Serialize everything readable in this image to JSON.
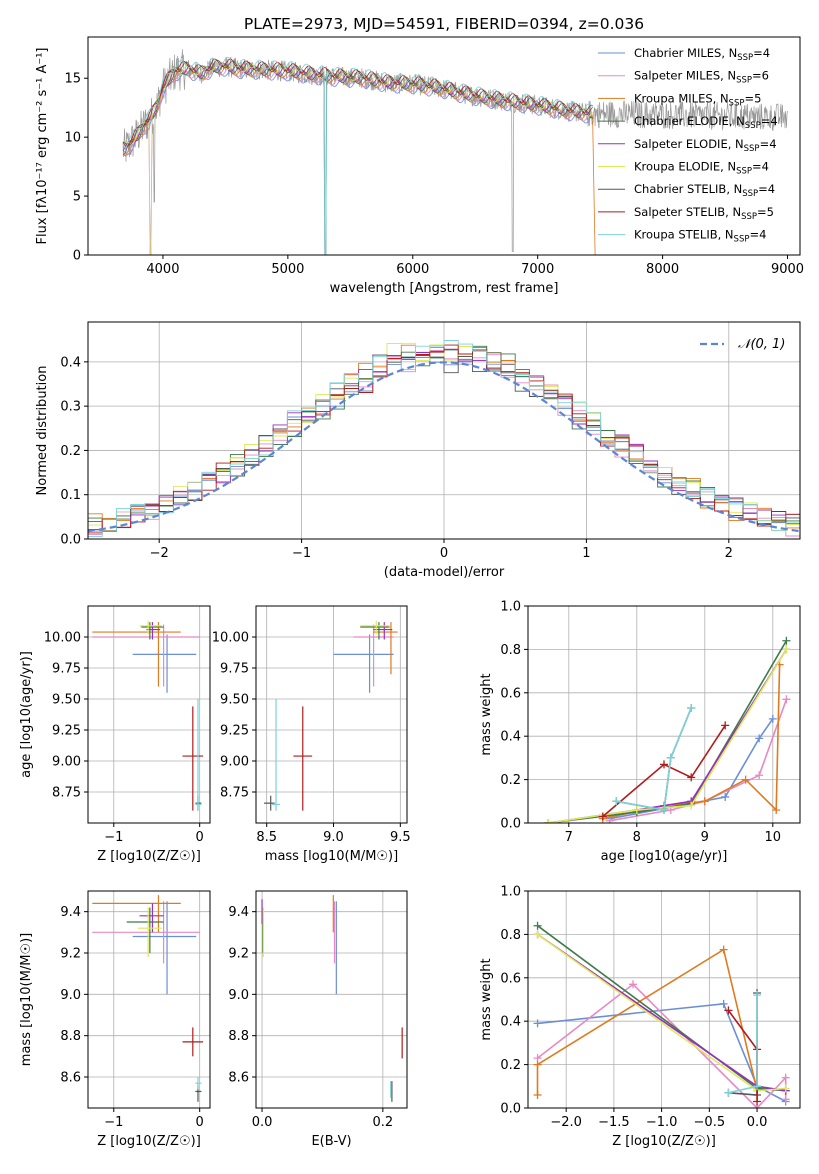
{
  "title": "PLATE=2973, MJD=54591, FIBERID=0394, z=0.036",
  "colors": {
    "chab_miles": "#6a8fd6",
    "salp_miles": "#e889c3",
    "krou_miles": "#e07a1f",
    "chab_elodie": "#3f7a4a",
    "salp_elodie": "#9a2fbf",
    "krou_elodie": "#dde85a",
    "chab_stelib": "#555555",
    "salp_stelib": "#b01b1b",
    "krou_stelib": "#7dd3d8",
    "data_spectrum": "#999999",
    "normal_curve": "#5b86d6"
  },
  "chart_data": [
    {
      "id": "spectrum",
      "type": "line",
      "xlabel": "wavelength [Angstrom, rest frame]",
      "ylabel": "Flux [fλ10⁻¹⁷ erg cm⁻² s⁻¹ A⁻¹]",
      "xlim": [
        3400,
        9100
      ],
      "ylim": [
        0,
        18.5
      ],
      "xticks": [
        4000,
        5000,
        6000,
        7000,
        8000,
        9000
      ],
      "yticks": [
        0,
        5,
        10,
        15
      ],
      "legend": {
        "placement": "top-right",
        "entries": [
          {
            "key": "chab_miles",
            "name": "Chabrier MILES, N",
            "sub": "SSP",
            "tail": "=4"
          },
          {
            "key": "salp_miles",
            "name": "Salpeter MILES, N",
            "sub": "SSP",
            "tail": "=6"
          },
          {
            "key": "krou_miles",
            "name": "Kroupa MILES, N",
            "sub": "SSP",
            "tail": "=5"
          },
          {
            "key": "chab_elodie",
            "name": "Chabrier ELODIE, N",
            "sub": "SSP",
            "tail": "=4"
          },
          {
            "key": "salp_elodie",
            "name": "Salpeter ELODIE, N",
            "sub": "SSP",
            "tail": "=4"
          },
          {
            "key": "krou_elodie",
            "name": "Kroupa ELODIE, N",
            "sub": "SSP",
            "tail": "=4"
          },
          {
            "key": "chab_stelib",
            "name": "Chabrier STELIB, N",
            "sub": "SSP",
            "tail": "=4"
          },
          {
            "key": "salp_stelib",
            "name": "Salpeter STELIB, N",
            "sub": "SSP",
            "tail": "=5"
          },
          {
            "key": "krou_stelib",
            "name": "Kroupa STELIB, N",
            "sub": "SSP",
            "tail": "=4"
          }
        ]
      },
      "envelope": {
        "x": [
          3700,
          3750,
          3800,
          3850,
          3900,
          3950,
          4000,
          4100,
          4200,
          4300,
          4400,
          4500,
          4600,
          4800,
          5000,
          5200,
          5400,
          5600,
          5800,
          6000,
          6200,
          6400,
          6600,
          6800,
          7000,
          7200,
          7400
        ],
        "y": [
          9.0,
          9.6,
          10.2,
          11.0,
          11.6,
          12.6,
          14.2,
          15.6,
          15.8,
          15.4,
          15.9,
          16.0,
          15.8,
          15.7,
          15.6,
          15.3,
          15.1,
          15.0,
          14.6,
          14.5,
          14.2,
          13.7,
          13.3,
          13.0,
          12.7,
          12.3,
          12.0
        ]
      },
      "krou_miles_cutoff": 7440
    },
    {
      "id": "residuals",
      "type": "line",
      "xlabel": "(data-model)/error",
      "ylabel": "Normed distribution",
      "xlim": [
        -2.5,
        2.5
      ],
      "ylim": [
        0,
        0.49
      ],
      "xticks": [
        -2,
        -1,
        0,
        1,
        2
      ],
      "yticks": [
        0.0,
        0.1,
        0.2,
        0.3,
        0.4
      ],
      "legend": {
        "placement": "top-right",
        "label": "N(0,1)"
      },
      "bin_width": 0.1
    },
    {
      "id": "age_vs_Z",
      "type": "scatter",
      "xlabel": "Z [log10(Z/Z☉)]",
      "ylabel": "age [log10(age/yr)]",
      "xlim": [
        -1.3,
        0.12
      ],
      "ylim": [
        8.5,
        10.25
      ],
      "xticks": [
        -1,
        0
      ],
      "yticks": [
        8.75,
        9.0,
        9.25,
        9.5,
        9.75,
        10.0
      ],
      "points": [
        {
          "key": "chab_miles",
          "x": -0.38,
          "xl": -0.78,
          "xh": -0.04,
          "y": 9.86,
          "yl": 9.55,
          "yh": 10.02
        },
        {
          "key": "salp_miles",
          "x": -0.42,
          "xl": -1.25,
          "xh": 0.0,
          "y": 10.0,
          "yl": 9.6,
          "yh": 10.1
        },
        {
          "key": "krou_miles",
          "x": -0.48,
          "xl": -1.25,
          "xh": -0.22,
          "y": 10.04,
          "yl": 9.6,
          "yh": 10.12
        },
        {
          "key": "chab_elodie",
          "x": -0.58,
          "xl": -0.68,
          "xh": -0.42,
          "y": 10.08,
          "yl": 9.98,
          "yh": 10.12
        },
        {
          "key": "salp_elodie",
          "x": -0.55,
          "xl": -0.62,
          "xh": -0.46,
          "y": 10.06,
          "yl": 9.98,
          "yh": 10.12
        },
        {
          "key": "krou_elodie",
          "x": -0.6,
          "xl": -0.7,
          "xh": -0.44,
          "y": 10.09,
          "yl": 10.02,
          "yh": 10.13
        },
        {
          "key": "chab_stelib",
          "x": -0.02,
          "xl": -0.05,
          "xh": 0.02,
          "y": 8.66,
          "yl": 8.6,
          "yh": 8.72
        },
        {
          "key": "salp_stelib",
          "x": -0.08,
          "xl": -0.2,
          "xh": 0.04,
          "y": 9.04,
          "yl": 8.6,
          "yh": 9.44
        },
        {
          "key": "krou_stelib",
          "x": -0.02,
          "xl": -0.05,
          "xh": 0.02,
          "y": 8.65,
          "yl": 8.6,
          "yh": 9.5
        }
      ]
    },
    {
      "id": "age_vs_mass",
      "type": "scatter",
      "xlabel": "mass [log10(M/M☉)]",
      "ylabel": "",
      "xlim": [
        8.42,
        9.55
      ],
      "ylim": [
        8.5,
        10.25
      ],
      "xticks": [
        8.5,
        9.0,
        9.5
      ],
      "yticks": [
        8.75,
        9.0,
        9.25,
        9.5,
        9.75,
        10.0
      ],
      "points": [
        {
          "key": "chab_miles",
          "x": 9.27,
          "xl": 9.0,
          "xh": 9.45,
          "y": 9.86,
          "yl": 9.55,
          "yh": 10.02
        },
        {
          "key": "salp_miles",
          "x": 9.3,
          "xl": 9.15,
          "xh": 9.45,
          "y": 10.0,
          "yl": 9.6,
          "yh": 10.1
        },
        {
          "key": "krou_miles",
          "x": 9.43,
          "xl": 9.3,
          "xh": 9.48,
          "y": 10.04,
          "yl": 9.7,
          "yh": 10.12
        },
        {
          "key": "chab_elodie",
          "x": 9.34,
          "xl": 9.2,
          "xh": 9.42,
          "y": 10.08,
          "yl": 9.98,
          "yh": 10.12
        },
        {
          "key": "salp_elodie",
          "x": 9.38,
          "xl": 9.3,
          "xh": 9.44,
          "y": 10.06,
          "yl": 9.98,
          "yh": 10.12
        },
        {
          "key": "krou_elodie",
          "x": 9.32,
          "xl": 9.2,
          "xh": 9.42,
          "y": 10.09,
          "yl": 10.02,
          "yh": 10.13
        },
        {
          "key": "chab_stelib",
          "x": 8.53,
          "xl": 8.48,
          "xh": 8.56,
          "y": 8.66,
          "yl": 8.6,
          "yh": 8.72
        },
        {
          "key": "salp_stelib",
          "x": 8.77,
          "xl": 8.7,
          "xh": 8.84,
          "y": 9.04,
          "yl": 8.6,
          "yh": 9.44
        },
        {
          "key": "krou_stelib",
          "x": 8.57,
          "xl": 8.54,
          "xh": 8.6,
          "y": 8.65,
          "yl": 8.6,
          "yh": 9.5
        }
      ]
    },
    {
      "id": "weight_vs_age",
      "type": "line",
      "xlabel": "age [log10(age/yr)]",
      "ylabel": "mass weight",
      "xlim": [
        6.4,
        10.4
      ],
      "ylim": [
        0,
        1.0
      ],
      "xticks": [
        7,
        8,
        9,
        10
      ],
      "yticks": [
        0.0,
        0.2,
        0.4,
        0.6,
        0.8,
        1.0
      ],
      "series": [
        {
          "key": "chab_miles",
          "x": [
            7.6,
            8.8,
            9.3,
            9.8,
            10.0
          ],
          "y": [
            0.02,
            0.09,
            0.12,
            0.39,
            0.48
          ]
        },
        {
          "key": "salp_miles",
          "x": [
            7.6,
            8.5,
            9.0,
            9.8,
            10.2
          ],
          "y": [
            0.01,
            0.06,
            0.1,
            0.22,
            0.57
          ]
        },
        {
          "key": "krou_miles",
          "x": [
            7.5,
            8.4,
            9.0,
            9.6,
            10.05,
            10.1
          ],
          "y": [
            0.02,
            0.08,
            0.1,
            0.2,
            0.06,
            0.73
          ]
        },
        {
          "key": "chab_elodie",
          "x": [
            6.7,
            8.0,
            8.8,
            10.2
          ],
          "y": [
            0.0,
            0.05,
            0.09,
            0.84
          ]
        },
        {
          "key": "salp_elodie",
          "x": [
            6.7,
            8.0,
            8.8,
            10.2
          ],
          "y": [
            0.0,
            0.06,
            0.1,
            0.8
          ]
        },
        {
          "key": "krou_elodie",
          "x": [
            6.7,
            8.0,
            8.8,
            10.2
          ],
          "y": [
            0.0,
            0.06,
            0.08,
            0.8
          ]
        },
        {
          "key": "chab_stelib",
          "x": [
            7.7,
            8.4,
            8.5,
            8.8
          ],
          "y": [
            0.1,
            0.06,
            0.3,
            0.53
          ]
        },
        {
          "key": "salp_stelib",
          "x": [
            7.5,
            8.4,
            8.8,
            9.3
          ],
          "y": [
            0.03,
            0.27,
            0.21,
            0.45
          ]
        },
        {
          "key": "krou_stelib",
          "x": [
            7.7,
            8.4,
            8.5,
            8.8
          ],
          "y": [
            0.1,
            0.06,
            0.3,
            0.53
          ]
        }
      ]
    },
    {
      "id": "mass_vs_Z",
      "type": "scatter",
      "xlabel": "Z [log10(Z/Z☉)]",
      "ylabel": "mass [log10(M/M☉)]",
      "xlim": [
        -1.3,
        0.12
      ],
      "ylim": [
        8.45,
        9.5
      ],
      "xticks": [
        -1,
        0
      ],
      "yticks": [
        8.6,
        8.8,
        9.0,
        9.2,
        9.4
      ],
      "points": [
        {
          "key": "chab_miles",
          "x": -0.38,
          "xl": -0.78,
          "xh": -0.04,
          "y": 9.28,
          "yl": 9.0,
          "yh": 9.45
        },
        {
          "key": "salp_miles",
          "x": -0.42,
          "xl": -1.25,
          "xh": 0.0,
          "y": 9.3,
          "yl": 9.15,
          "yh": 9.45
        },
        {
          "key": "krou_miles",
          "x": -0.48,
          "xl": -1.25,
          "xh": -0.22,
          "y": 9.44,
          "yl": 9.3,
          "yh": 9.48
        },
        {
          "key": "chab_elodie",
          "x": -0.58,
          "xl": -0.85,
          "xh": -0.42,
          "y": 9.35,
          "yl": 9.2,
          "yh": 9.42
        },
        {
          "key": "salp_elodie",
          "x": -0.55,
          "xl": -0.7,
          "xh": -0.42,
          "y": 9.38,
          "yl": 9.3,
          "yh": 9.44
        },
        {
          "key": "krou_elodie",
          "x": -0.6,
          "xl": -0.72,
          "xh": -0.44,
          "y": 9.32,
          "yl": 9.18,
          "yh": 9.42
        },
        {
          "key": "chab_stelib",
          "x": -0.02,
          "xl": -0.05,
          "xh": 0.02,
          "y": 8.53,
          "yl": 8.48,
          "yh": 8.56
        },
        {
          "key": "salp_stelib",
          "x": -0.08,
          "xl": -0.2,
          "xh": 0.04,
          "y": 8.77,
          "yl": 8.7,
          "yh": 8.84
        },
        {
          "key": "krou_stelib",
          "x": -0.02,
          "xl": -0.05,
          "xh": 0.02,
          "y": 8.57,
          "yl": 8.54,
          "yh": 8.6
        }
      ]
    },
    {
      "id": "mass_vs_ebv",
      "type": "scatter",
      "xlabel": "E(B-V)",
      "ylabel": "",
      "xlim": [
        -0.01,
        0.24
      ],
      "ylim": [
        8.45,
        9.5
      ],
      "xticks": [
        0.0,
        0.2
      ],
      "yticks": [
        8.6,
        8.8,
        9.0,
        9.2,
        9.4
      ],
      "points": [
        {
          "key": "chab_miles",
          "x": 0.123,
          "xl": 0.123,
          "xh": 0.123,
          "y": 9.28,
          "yl": 9.0,
          "yh": 9.45
        },
        {
          "key": "salp_miles",
          "x": 0.12,
          "xl": 0.12,
          "xh": 0.12,
          "y": 9.3,
          "yl": 9.15,
          "yh": 9.45
        },
        {
          "key": "krou_miles",
          "x": 0.118,
          "xl": 0.118,
          "xh": 0.118,
          "y": 9.4,
          "yl": 9.3,
          "yh": 9.48
        },
        {
          "key": "chab_elodie",
          "x": 0.001,
          "xl": 0.001,
          "xh": 0.001,
          "y": 9.35,
          "yl": 9.2,
          "yh": 9.42
        },
        {
          "key": "salp_elodie",
          "x": 0.0,
          "xl": 0.0,
          "xh": 0.0,
          "y": 9.42,
          "yl": 9.34,
          "yh": 9.46
        },
        {
          "key": "krou_elodie",
          "x": 0.002,
          "xl": 0.002,
          "xh": 0.002,
          "y": 9.28,
          "yl": 9.18,
          "yh": 9.42
        },
        {
          "key": "chab_stelib",
          "x": 0.215,
          "xl": 0.215,
          "xh": 0.215,
          "y": 8.53,
          "yl": 8.48,
          "yh": 8.58
        },
        {
          "key": "salp_stelib",
          "x": 0.232,
          "xl": 0.232,
          "xh": 0.232,
          "y": 8.77,
          "yl": 8.69,
          "yh": 8.84
        },
        {
          "key": "krou_stelib",
          "x": 0.213,
          "xl": 0.213,
          "xh": 0.213,
          "y": 8.55,
          "yl": 8.5,
          "yh": 8.58
        }
      ]
    },
    {
      "id": "weight_vs_Z",
      "type": "line",
      "xlabel": "Z [log10(Z/Z☉)]",
      "ylabel": "mass weight",
      "xlim": [
        -2.4,
        0.45
      ],
      "ylim": [
        0,
        1.0
      ],
      "xticks": [
        -2.0,
        -1.5,
        -1.0,
        -0.5,
        0.0
      ],
      "yticks": [
        0.0,
        0.2,
        0.4,
        0.6,
        0.8,
        1.0
      ],
      "series": [
        {
          "key": "chab_miles",
          "x": [
            -2.3,
            -0.35,
            0.0,
            0.3
          ],
          "y": [
            0.39,
            0.48,
            0.1,
            0.03
          ]
        },
        {
          "key": "salp_miles",
          "x": [
            -2.3,
            -1.3,
            0.0,
            0.3,
            0.3
          ],
          "y": [
            0.23,
            0.57,
            0.0,
            0.14,
            0.04
          ]
        },
        {
          "key": "krou_miles",
          "x": [
            -2.3,
            -2.3,
            -0.35,
            0.0
          ],
          "y": [
            0.06,
            0.2,
            0.73,
            0.08
          ]
        },
        {
          "key": "chab_elodie",
          "x": [
            -2.3,
            0.0,
            0.3
          ],
          "y": [
            0.84,
            0.09,
            0.08
          ]
        },
        {
          "key": "salp_elodie",
          "x": [
            -2.3,
            0.0,
            0.3
          ],
          "y": [
            0.8,
            0.1,
            0.08
          ]
        },
        {
          "key": "krou_elodie",
          "x": [
            -2.3,
            0.0,
            0.3
          ],
          "y": [
            0.8,
            0.08,
            0.09
          ]
        },
        {
          "key": "chab_stelib",
          "x": [
            -0.3,
            0.0,
            0.0
          ],
          "y": [
            0.07,
            0.06,
            0.53
          ]
        },
        {
          "key": "salp_stelib",
          "x": [
            -0.3,
            0.0,
            0.0
          ],
          "y": [
            0.45,
            0.27,
            0.03
          ]
        },
        {
          "key": "krou_stelib",
          "x": [
            -0.3,
            0.0,
            0.0
          ],
          "y": [
            0.07,
            0.1,
            0.52
          ]
        }
      ]
    }
  ]
}
